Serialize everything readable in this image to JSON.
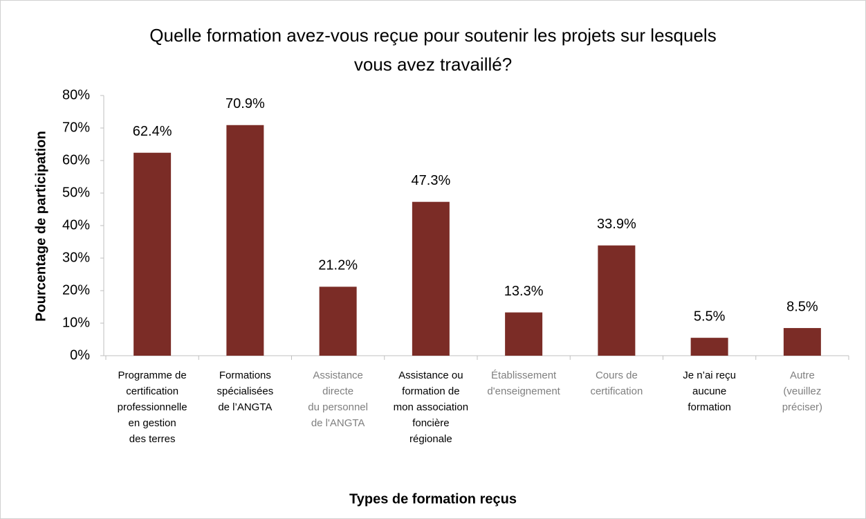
{
  "chart_data": {
    "type": "bar",
    "title": "Quelle formation avez-vous reçue pour soutenir les projets sur lesquels\nvous avez travaillé?",
    "x_label": "Types de formation reçus",
    "y_label": "Pourcentage de participation",
    "categories": [
      "Programme de\ncertification\nprofessionnelle\nen gestion\ndes terres",
      "Formations\nspécialisées\nde l’ANGTA",
      "Assistance\ndirecte\ndu personnel\nde l'ANGTA",
      "Assistance ou\nformation de\nmon association\nfoncière\nrégionale",
      "Établissement\nd'enseignement",
      "Cours de\ncertification",
      "Je n’ai reçu\naucune\nformation",
      "Autre\n(veuillez\npréciser)"
    ],
    "category_label_colors": [
      "#000000",
      "#000000",
      "#7f7f7f",
      "#000000",
      "#7f7f7f",
      "#7f7f7f",
      "#000000",
      "#7f7f7f"
    ],
    "values": [
      62.4,
      70.9,
      21.2,
      47.3,
      13.3,
      33.9,
      5.5,
      8.5
    ],
    "value_labels": [
      "62.4%",
      "70.9%",
      "21.2%",
      "47.3%",
      "13.3%",
      "33.9%",
      "5.5%",
      "8.5%"
    ],
    "color": "#7b2c26",
    "ylim": [
      0,
      80
    ],
    "yticks": [
      {
        "value": 0,
        "label": "0%"
      },
      {
        "value": 10,
        "label": "10%"
      },
      {
        "value": 20,
        "label": "20%"
      },
      {
        "value": 30,
        "label": "30%"
      },
      {
        "value": 40,
        "label": "40%"
      },
      {
        "value": 50,
        "label": "50%"
      },
      {
        "value": 60,
        "label": "60%"
      },
      {
        "value": 70,
        "label": "70%"
      },
      {
        "value": 80,
        "label": "80%"
      }
    ]
  }
}
